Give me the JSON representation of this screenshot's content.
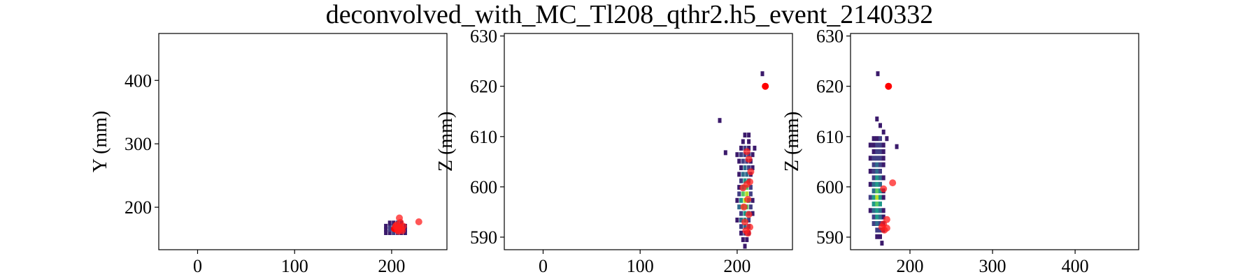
{
  "figure": {
    "title": "deconvolved_with_MC_Tl208_qthr2.h5_event_2140332"
  },
  "chart_data": [
    {
      "type": "heatmap",
      "panel": "xy",
      "xlabel": "",
      "ylabel": "Y (mm)",
      "xlim": [
        -40,
        257
      ],
      "ylim": [
        133,
        474
      ],
      "xticks": [
        0,
        100,
        200
      ],
      "yticks": [
        200,
        300,
        400
      ],
      "cells": [
        [
          194,
          160,
          1
        ],
        [
          198,
          160,
          1
        ],
        [
          202,
          160,
          2
        ],
        [
          206,
          160,
          2
        ],
        [
          210,
          160,
          1
        ],
        [
          214,
          160,
          1
        ],
        [
          194,
          165,
          1
        ],
        [
          198,
          165,
          2
        ],
        [
          202,
          165,
          3
        ],
        [
          206,
          165,
          3
        ],
        [
          210,
          165,
          2
        ],
        [
          214,
          165,
          1
        ],
        [
          194,
          170,
          1
        ],
        [
          198,
          170,
          2
        ],
        [
          202,
          170,
          3
        ],
        [
          206,
          170,
          2
        ],
        [
          210,
          170,
          2
        ],
        [
          214,
          170,
          1
        ],
        [
          198,
          175,
          1
        ],
        [
          202,
          175,
          1
        ],
        [
          206,
          175,
          2
        ],
        [
          210,
          175,
          1
        ]
      ],
      "points": [
        [
          203,
          166
        ],
        [
          206,
          164
        ],
        [
          208,
          169
        ],
        [
          210,
          166
        ],
        [
          205,
          172
        ],
        [
          209,
          176
        ],
        [
          207,
          162
        ],
        [
          212,
          170
        ],
        [
          204,
          170
        ],
        [
          208,
          183
        ],
        [
          228,
          177
        ],
        [
          211,
          163
        ],
        [
          206,
          167
        ]
      ]
    },
    {
      "type": "heatmap",
      "panel": "xz",
      "xlabel": "",
      "ylabel": "Z (mm)",
      "xlim": [
        -40,
        257
      ],
      "ylim": [
        587.5,
        630.5
      ],
      "xticks": [
        0,
        100,
        200
      ],
      "yticks": [
        590,
        600,
        610,
        620,
        630
      ],
      "cells": [
        [
          226,
          622.5,
          1
        ],
        [
          182,
          613.2,
          1
        ],
        [
          188,
          606.8,
          1
        ],
        [
          208,
          610.3,
          1
        ],
        [
          212,
          610.3,
          1
        ],
        [
          206,
          609.0,
          1
        ],
        [
          212,
          609.0,
          1
        ],
        [
          204,
          607.7,
          1
        ],
        [
          208,
          607.7,
          2
        ],
        [
          212,
          607.7,
          1
        ],
        [
          218,
          607.7,
          1
        ],
        [
          200,
          606.4,
          1
        ],
        [
          204,
          606.4,
          2
        ],
        [
          208,
          606.4,
          2
        ],
        [
          212,
          606.4,
          2
        ],
        [
          216,
          606.4,
          1
        ],
        [
          202,
          605.1,
          1
        ],
        [
          206,
          605.1,
          2
        ],
        [
          210,
          605.1,
          2
        ],
        [
          214,
          605.1,
          1
        ],
        [
          204,
          603.8,
          1
        ],
        [
          208,
          603.8,
          3
        ],
        [
          212,
          603.8,
          2
        ],
        [
          216,
          603.8,
          1
        ],
        [
          202,
          602.5,
          1
        ],
        [
          206,
          602.5,
          3
        ],
        [
          210,
          602.5,
          3
        ],
        [
          214,
          602.5,
          1
        ],
        [
          204,
          601.2,
          2
        ],
        [
          208,
          601.2,
          4
        ],
        [
          212,
          601.2,
          3
        ],
        [
          202,
          599.9,
          1
        ],
        [
          206,
          599.9,
          4
        ],
        [
          210,
          599.9,
          5
        ],
        [
          214,
          599.9,
          2
        ],
        [
          202,
          598.6,
          2
        ],
        [
          206,
          598.6,
          5
        ],
        [
          210,
          598.6,
          6
        ],
        [
          214,
          598.6,
          2
        ],
        [
          200,
          597.3,
          1
        ],
        [
          204,
          597.3,
          4
        ],
        [
          208,
          597.3,
          6
        ],
        [
          212,
          597.3,
          4
        ],
        [
          216,
          597.3,
          1
        ],
        [
          202,
          596.0,
          3
        ],
        [
          206,
          596.0,
          5
        ],
        [
          210,
          596.0,
          5
        ],
        [
          214,
          596.0,
          2
        ],
        [
          204,
          594.7,
          2
        ],
        [
          208,
          594.7,
          4
        ],
        [
          212,
          594.7,
          3
        ],
        [
          216,
          594.7,
          1
        ],
        [
          200,
          593.4,
          1
        ],
        [
          204,
          593.4,
          3
        ],
        [
          208,
          593.4,
          4
        ],
        [
          212,
          593.4,
          2
        ],
        [
          204,
          592.1,
          2
        ],
        [
          208,
          592.1,
          3
        ],
        [
          212,
          592.1,
          2
        ],
        [
          204,
          590.8,
          1
        ],
        [
          208,
          590.8,
          2
        ],
        [
          212,
          590.8,
          1
        ],
        [
          206,
          589.5,
          1
        ],
        [
          210,
          589.5,
          1
        ],
        [
          208,
          588.2,
          1
        ]
      ],
      "points": [
        [
          229,
          620.0
        ],
        [
          210,
          607.0
        ],
        [
          212,
          605.5
        ],
        [
          214,
          603.0
        ],
        [
          213,
          601.0
        ],
        [
          210,
          600.5
        ],
        [
          206,
          599.8
        ],
        [
          211,
          597.5
        ],
        [
          207,
          596.0
        ],
        [
          212,
          594.5
        ],
        [
          208,
          593.0
        ],
        [
          213,
          592.0
        ],
        [
          209,
          591.3
        ],
        [
          211,
          590.8
        ]
      ]
    },
    {
      "type": "heatmap",
      "panel": "yz",
      "xlabel": "",
      "ylabel": "Z (mm)",
      "xlim": [
        128,
        477
      ],
      "ylim": [
        587.5,
        630.5
      ],
      "xticks": [
        200,
        300,
        400
      ],
      "yticks": [
        590,
        600,
        610,
        620,
        630
      ],
      "cells": [
        [
          161,
          622.5,
          1
        ],
        [
          184,
          608.0,
          1
        ],
        [
          160,
          613.5,
          1
        ],
        [
          164,
          612.2,
          1
        ],
        [
          168,
          610.9,
          1
        ],
        [
          156,
          609.6,
          1
        ],
        [
          160,
          609.6,
          1
        ],
        [
          164,
          609.6,
          2
        ],
        [
          172,
          609.6,
          1
        ],
        [
          152,
          608.3,
          1
        ],
        [
          156,
          608.3,
          1
        ],
        [
          160,
          608.3,
          2
        ],
        [
          164,
          608.3,
          2
        ],
        [
          168,
          608.3,
          1
        ],
        [
          156,
          607.0,
          1
        ],
        [
          160,
          607.0,
          2
        ],
        [
          164,
          607.0,
          2
        ],
        [
          168,
          607.0,
          1
        ],
        [
          152,
          605.7,
          1
        ],
        [
          156,
          605.7,
          2
        ],
        [
          160,
          605.7,
          2
        ],
        [
          164,
          605.7,
          2
        ],
        [
          168,
          605.7,
          1
        ],
        [
          156,
          604.4,
          2
        ],
        [
          160,
          604.4,
          3
        ],
        [
          164,
          604.4,
          2
        ],
        [
          168,
          604.4,
          1
        ],
        [
          152,
          603.1,
          1
        ],
        [
          156,
          603.1,
          2
        ],
        [
          160,
          603.1,
          3
        ],
        [
          164,
          603.1,
          2
        ],
        [
          156,
          601.8,
          2
        ],
        [
          160,
          601.8,
          4
        ],
        [
          164,
          601.8,
          3
        ],
        [
          168,
          601.8,
          1
        ],
        [
          152,
          600.5,
          1
        ],
        [
          156,
          600.5,
          3
        ],
        [
          160,
          600.5,
          4
        ],
        [
          164,
          600.5,
          3
        ],
        [
          156,
          599.2,
          3
        ],
        [
          160,
          599.2,
          5
        ],
        [
          164,
          599.2,
          4
        ],
        [
          168,
          599.2,
          1
        ],
        [
          152,
          597.9,
          2
        ],
        [
          156,
          597.9,
          4
        ],
        [
          160,
          597.9,
          6
        ],
        [
          164,
          597.9,
          4
        ],
        [
          168,
          597.9,
          1
        ],
        [
          156,
          596.6,
          4
        ],
        [
          160,
          596.6,
          5
        ],
        [
          164,
          596.6,
          4
        ],
        [
          152,
          595.3,
          1
        ],
        [
          156,
          595.3,
          3
        ],
        [
          160,
          595.3,
          4
        ],
        [
          164,
          595.3,
          3
        ],
        [
          168,
          595.3,
          1
        ],
        [
          156,
          594.0,
          2
        ],
        [
          160,
          594.0,
          4
        ],
        [
          164,
          594.0,
          3
        ],
        [
          168,
          594.0,
          1
        ],
        [
          156,
          592.7,
          2
        ],
        [
          160,
          592.7,
          3
        ],
        [
          164,
          592.7,
          2
        ],
        [
          168,
          592.7,
          1
        ],
        [
          160,
          591.4,
          2
        ],
        [
          164,
          591.4,
          2
        ],
        [
          168,
          591.4,
          1
        ],
        [
          160,
          590.1,
          1
        ],
        [
          164,
          590.1,
          1
        ],
        [
          166,
          588.8,
          1
        ]
      ],
      "points": [
        [
          174,
          620.0
        ],
        [
          179,
          600.8
        ],
        [
          168,
          599.6
        ],
        [
          172,
          593.5
        ],
        [
          168,
          592.6
        ],
        [
          166,
          592.0
        ],
        [
          172,
          591.8
        ],
        [
          169,
          591.4
        ]
      ]
    }
  ]
}
